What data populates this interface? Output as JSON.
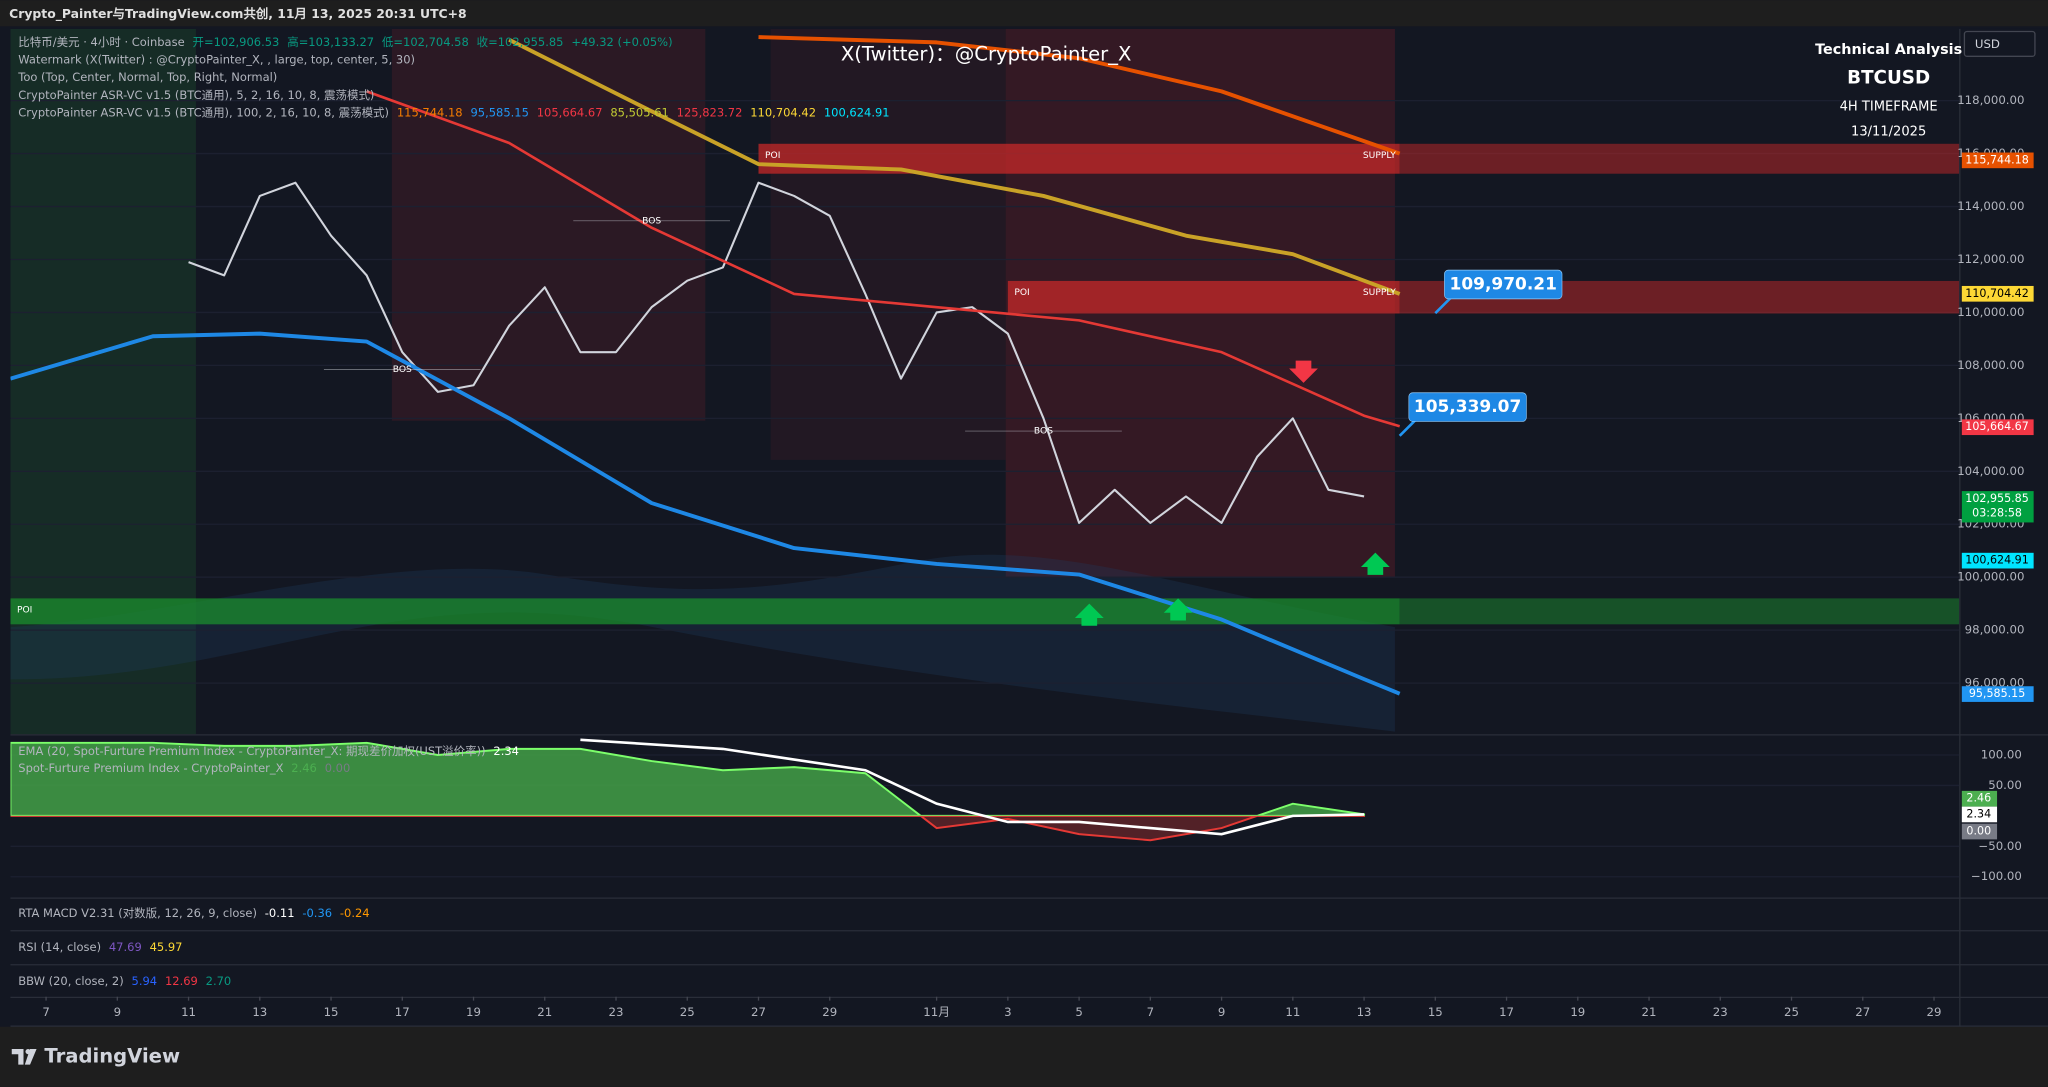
{
  "header": {
    "title": "Crypto_Painter与TradingView.com共创, 11月 13, 2025 20:31 UTC+8"
  },
  "footer": {
    "brand": "TradingView"
  },
  "chart_data": [
    {
      "type": "line",
      "watermark": "X(Twitter)：@CryptoPainter_X",
      "info": [
        "Technical Analysis",
        "BTCUSD",
        "4H TIMEFRAME",
        "13/11/2025"
      ],
      "currency": "USD",
      "legend": [
        [
          {
            "text": "比特币/美元 · 4小时 · Coinbase",
            "color": "#b2b5be"
          },
          {
            "text": "开=102,906.53",
            "color": "#089981"
          },
          {
            "text": "高=103,133.27",
            "color": "#089981"
          },
          {
            "text": "低=102,704.58",
            "color": "#089981"
          },
          {
            "text": "收=102,955.85",
            "color": "#089981"
          },
          {
            "text": "+49.32 (+0.05%)",
            "color": "#089981"
          }
        ],
        [
          {
            "text": "Watermark (X(Twitter) : @CryptoPainter_X, , large, top, center, 5, 30)",
            "color": "#b2b5be"
          }
        ],
        [
          {
            "text": "Too (Top, Center, Normal, Top, Right, Normal)",
            "color": "#b2b5be"
          }
        ],
        [
          {
            "text": "CryptoPainter ASR-VC v1.5 (BTC通用), 5, 2, 16, 10, 8, 震荡模式)",
            "color": "#b2b5be"
          }
        ],
        [
          {
            "text": "CryptoPainter ASR-VC v1.5 (BTC通用), 100, 2, 16, 10, 8, 震荡模式)",
            "color": "#b2b5be"
          },
          {
            "text": "115,744.18",
            "color": "#f57c00"
          },
          {
            "text": "95,585.15",
            "color": "#2196f3"
          },
          {
            "text": "105,664.67",
            "color": "#f23645"
          },
          {
            "text": "85,505.61",
            "color": "#c0ca33"
          },
          {
            "text": "125,823.72",
            "color": "#f23645"
          },
          {
            "text": "110,704.42",
            "color": "#fdd835"
          },
          {
            "text": "100,624.91",
            "color": "#00e5ff"
          }
        ]
      ],
      "xlim": [
        "2025-10-06",
        "2025-11-30"
      ],
      "xticks": [
        {
          "value": "2025-10-07",
          "label": "7"
        },
        {
          "value": "2025-10-09",
          "label": "9"
        },
        {
          "value": "2025-10-11",
          "label": "11"
        },
        {
          "value": "2025-10-13",
          "label": "13"
        },
        {
          "value": "2025-10-15",
          "label": "15"
        },
        {
          "value": "2025-10-17",
          "label": "17"
        },
        {
          "value": "2025-10-19",
          "label": "19"
        },
        {
          "value": "2025-10-21",
          "label": "21"
        },
        {
          "value": "2025-10-23",
          "label": "23"
        },
        {
          "value": "2025-10-25",
          "label": "25"
        },
        {
          "value": "2025-10-27",
          "label": "27"
        },
        {
          "value": "2025-10-29",
          "label": "29"
        },
        {
          "value": "2025-11-01",
          "label": "11月"
        },
        {
          "value": "2025-11-03",
          "label": "3"
        },
        {
          "value": "2025-11-05",
          "label": "5"
        },
        {
          "value": "2025-11-07",
          "label": "7"
        },
        {
          "value": "2025-11-09",
          "label": "9"
        },
        {
          "value": "2025-11-11",
          "label": "11"
        },
        {
          "value": "2025-11-13",
          "label": "13"
        },
        {
          "value": "2025-11-15",
          "label": "15"
        },
        {
          "value": "2025-11-17",
          "label": "17"
        },
        {
          "value": "2025-11-19",
          "label": "19"
        },
        {
          "value": "2025-11-21",
          "label": "21"
        },
        {
          "value": "2025-11-23",
          "label": "23"
        },
        {
          "value": "2025-11-25",
          "label": "25"
        },
        {
          "value": "2025-11-27",
          "label": "27"
        },
        {
          "value": "2025-11-29",
          "label": "29"
        }
      ],
      "ylim": [
        94070,
        120710
      ],
      "yticks": [
        {
          "value": 96000,
          "label": "96,000.00"
        },
        {
          "value": 98000,
          "label": "98,000.00"
        },
        {
          "value": 100000,
          "label": "100,000.00"
        },
        {
          "value": 102000,
          "label": "102,000.00"
        },
        {
          "value": 104000,
          "label": "104,000.00"
        },
        {
          "value": 106000,
          "label": "106,000.00"
        },
        {
          "value": 108000,
          "label": "108,000.00"
        },
        {
          "value": 110000,
          "label": "110,000.00"
        },
        {
          "value": 112000,
          "label": "112,000.00"
        },
        {
          "value": 114000,
          "label": "114,000.00"
        },
        {
          "value": 116000,
          "label": "116,000.00"
        },
        {
          "value": 118000,
          "label": "118,000.00"
        }
      ],
      "grid": true,
      "series": [
        {
          "color": "#d1d4dc",
          "width": 1.6,
          "x": [
            "2025-10-11",
            "2025-10-12",
            "2025-10-13",
            "2025-10-14",
            "2025-10-15",
            "2025-10-16",
            "2025-10-17",
            "2025-10-18",
            "2025-10-19",
            "2025-10-20",
            "2025-10-21",
            "2025-10-22",
            "2025-10-23",
            "2025-10-24",
            "2025-10-25",
            "2025-10-26",
            "2025-10-27",
            "2025-10-28",
            "2025-10-29",
            "2025-10-30",
            "2025-10-31",
            "2025-11-01",
            "2025-11-02",
            "2025-11-03",
            "2025-11-04",
            "2025-11-05",
            "2025-11-06",
            "2025-11-07",
            "2025-11-08",
            "2025-11-09",
            "2025-11-10",
            "2025-11-11",
            "2025-11-12",
            "2025-11-13"
          ],
          "values": [
            111900,
            111400,
            114400,
            114900,
            112900,
            111400,
            108500,
            107000,
            107250,
            109500,
            110950,
            108500,
            108500,
            110200,
            111200,
            111700,
            114900,
            114400,
            113650,
            110700,
            107500,
            110000,
            110200,
            109200,
            106000,
            102050,
            103300,
            102050,
            103050,
            102050,
            104550,
            106000,
            103300,
            103050
          ]
        },
        {
          "color": "#c9a227",
          "width": 3,
          "x": [
            "2025-10-20",
            "2025-10-24",
            "2025-10-27",
            "2025-10-31",
            "2025-11-04",
            "2025-11-08",
            "2025-11-11",
            "2025-11-14"
          ],
          "values": [
            120300,
            117600,
            115600,
            115400,
            114400,
            112900,
            112200,
            110700
          ]
        },
        {
          "color": "#e53935",
          "width": 2,
          "x": [
            "2025-10-16",
            "2025-10-20",
            "2025-10-24",
            "2025-10-28",
            "2025-11-01",
            "2025-11-05",
            "2025-11-09",
            "2025-11-13",
            "2025-11-14"
          ],
          "values": [
            118350,
            116400,
            113200,
            110700,
            110200,
            109700,
            108500,
            106100,
            105700
          ]
        },
        {
          "color": "#1e88e5",
          "width": 3,
          "x": [
            "2025-10-06",
            "2025-10-10",
            "2025-10-13",
            "2025-10-16",
            "2025-10-20",
            "2025-10-24",
            "2025-10-28",
            "2025-11-01",
            "2025-11-05",
            "2025-11-09",
            "2025-11-13",
            "2025-11-14"
          ],
          "values": [
            107500,
            109100,
            109200,
            108900,
            106000,
            102800,
            101100,
            100500,
            100100,
            98400,
            96150,
            95600
          ]
        },
        {
          "color": "#e65100",
          "width": 3,
          "x": [
            "2025-10-27",
            "2025-11-01",
            "2025-11-05",
            "2025-11-09",
            "2025-11-14"
          ],
          "values": [
            120400,
            120200,
            119600,
            118350,
            116000
          ]
        }
      ],
      "price_labels": [
        {
          "value": 115744.18,
          "label": "115,744.18",
          "color": "#e65100",
          "text_color": "#ffffff"
        },
        {
          "value": 110704.42,
          "label": "110,704.42",
          "color": "#fdd835",
          "text_color": "#000000"
        },
        {
          "value": 105664.67,
          "label": "105,664.67",
          "color": "#f23645",
          "text_color": "#ffffff"
        },
        {
          "value": 102955.85,
          "label": "102,955.85",
          "sub": "03:28:58",
          "color": "#00a040",
          "text_color": "#ffffff"
        },
        {
          "value": 100624.91,
          "label": "100,624.91",
          "color": "#00e5ff",
          "text_color": "#000000"
        },
        {
          "value": 95585.15,
          "label": "95,585.15",
          "color": "#2196f3",
          "text_color": "#ffffff"
        }
      ],
      "zones": [
        {
          "from": "2025-10-27",
          "to": "2025-11-14",
          "ylim": [
            115240,
            116370
          ],
          "color": "#c62828",
          "labels": [
            "POI",
            "SUPPLY"
          ]
        },
        {
          "from": "2025-11-03",
          "to": "2025-11-14",
          "ylim": [
            109960,
            111190
          ],
          "color": "#c62828",
          "labels": [
            "POI",
            "SUPPLY"
          ]
        },
        {
          "from": "2025-10-06",
          "to": "2025-11-14",
          "ylim": [
            98220,
            99200
          ],
          "color": "#1b8e2d",
          "labels": [
            "POI"
          ]
        }
      ],
      "annotations": [
        {
          "text": "BOS",
          "x": "2025-10-24",
          "y": 113460
        },
        {
          "text": "BOS",
          "x": "2025-10-17",
          "y": 107840
        },
        {
          "text": "BOS",
          "x": "2025-11-04",
          "y": 105520
        }
      ],
      "callouts": [
        {
          "value": 109970.21,
          "label": "109,970.21",
          "x": "2025-11-15"
        },
        {
          "value": 105339.07,
          "label": "105,339.07",
          "x": "2025-11-14"
        }
      ]
    },
    {
      "type": "area",
      "legend": [
        [
          {
            "text": "EMA (20, Spot-Furture Premium Index - CryptoPainter_X: 期现差价加权(UST溢价率))",
            "color": "#b2b5be"
          },
          {
            "text": "2.34",
            "color": "#ffffff"
          }
        ],
        [
          {
            "text": "Spot-Furture Premium Index - CryptoPainter_X",
            "color": "#b2b5be"
          },
          {
            "text": "2.46",
            "color": "#4caf50"
          },
          {
            "text": "0.00",
            "color": "#787b86"
          }
        ]
      ],
      "xlim": [
        "2025-10-06",
        "2025-11-30"
      ],
      "ylim": [
        -134,
        132
      ],
      "yticks": [
        {
          "value": 100,
          "label": "100.00"
        },
        {
          "value": 50,
          "label": "50.00"
        },
        {
          "value": -50,
          "label": "−50.00"
        },
        {
          "value": -100,
          "label": "−100.00"
        }
      ],
      "series": [
        {
          "color": "#43a047",
          "negative_color": "#e53935",
          "x": [
            "2025-10-06",
            "2025-10-08",
            "2025-10-10",
            "2025-10-12",
            "2025-10-14",
            "2025-10-16",
            "2025-10-18",
            "2025-10-20",
            "2025-10-22",
            "2025-10-24",
            "2025-10-26",
            "2025-10-28",
            "2025-10-30",
            "2025-11-01",
            "2025-11-03",
            "2025-11-05",
            "2025-11-07",
            "2025-11-09",
            "2025-11-11",
            "2025-11-13"
          ],
          "values": [
            120,
            120,
            120,
            115,
            115,
            120,
            100,
            110,
            110,
            90,
            75,
            80,
            70,
            -20,
            -5,
            -30,
            -40,
            -20,
            20,
            2.46
          ]
        },
        {
          "color": "#ffffff",
          "x": [
            "2025-10-22",
            "2025-10-26",
            "2025-10-30",
            "2025-11-01",
            "2025-11-03",
            "2025-11-05",
            "2025-11-07",
            "2025-11-09",
            "2025-11-11",
            "2025-11-13"
          ],
          "values": [
            125,
            110,
            75,
            20,
            -10,
            -10,
            -20,
            -30,
            0,
            2.34
          ]
        }
      ],
      "price_labels": [
        {
          "value": 2.46,
          "label": "2.46",
          "color": "#4caf50",
          "text_color": "#ffffff",
          "offset": -12
        },
        {
          "value": 2.34,
          "label": "2.34",
          "color": "#ffffff",
          "text_color": "#000000",
          "offset": 0
        },
        {
          "value": 0,
          "label": "0.00",
          "color": "#787b86",
          "text_color": "#ffffff",
          "offset": 12
        }
      ]
    }
  ],
  "indicators": [
    {
      "name": "RTA MACD V2.31 (对数版, 12, 26, 9, close)",
      "values": [
        {
          "text": "-0.11",
          "color": "#ffffff"
        },
        {
          "text": "-0.36",
          "color": "#2196f3"
        },
        {
          "text": "-0.24",
          "color": "#ff9800"
        }
      ]
    },
    {
      "name": "RSI (14, close)",
      "values": [
        {
          "text": "47.69",
          "color": "#7e57c2"
        },
        {
          "text": "45.97",
          "color": "#fdd835"
        }
      ]
    },
    {
      "name": "BBW (20, close, 2)",
      "values": [
        {
          "text": "5.94",
          "color": "#2962ff"
        },
        {
          "text": "12.69",
          "color": "#f23645"
        },
        {
          "text": "2.70",
          "color": "#089981"
        }
      ]
    }
  ]
}
